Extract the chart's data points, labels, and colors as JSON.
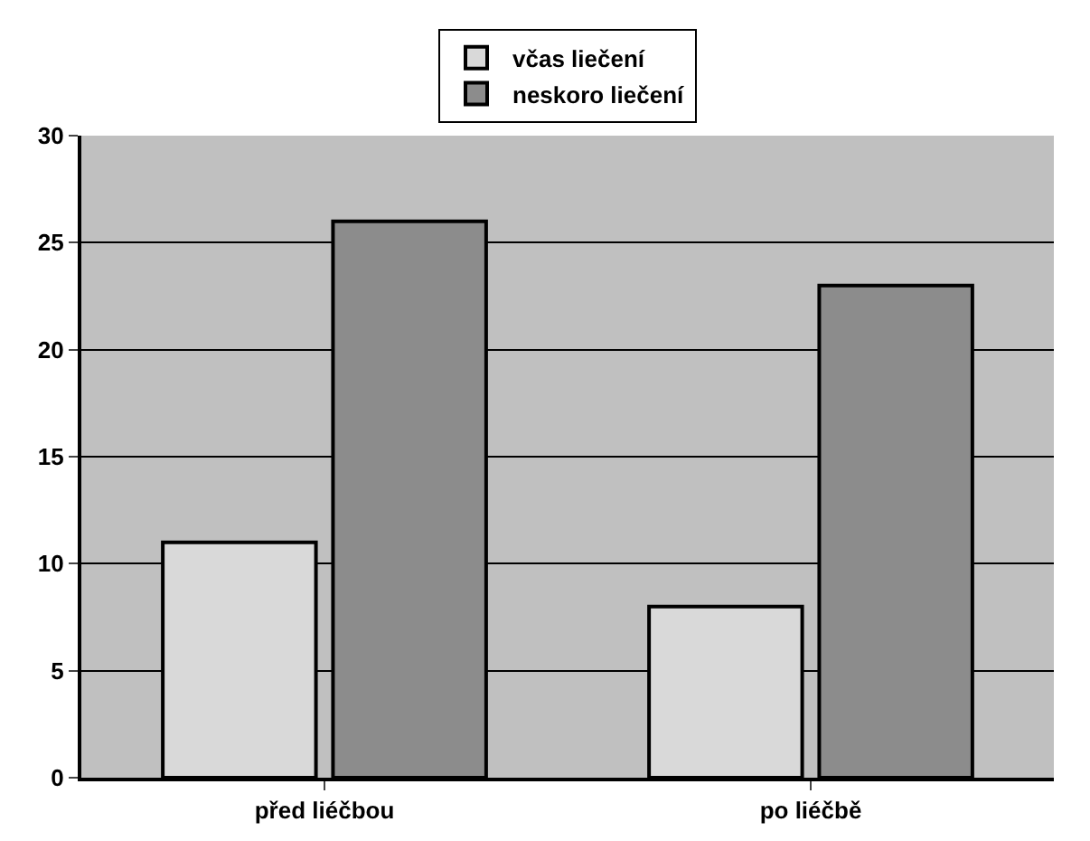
{
  "chart_data": {
    "type": "bar",
    "categories": [
      "před liéčbou",
      "po liéčbě"
    ],
    "series": [
      {
        "name": "včas liečení",
        "color": "#d9d9d9",
        "values": [
          11,
          8
        ]
      },
      {
        "name": "neskoro liečení",
        "color": "#8c8c8c",
        "values": [
          26,
          23
        ]
      }
    ],
    "ylim": [
      0,
      30
    ],
    "yticks": [
      0,
      5,
      10,
      15,
      20,
      25,
      30
    ],
    "grid": "y",
    "legend": "top"
  }
}
